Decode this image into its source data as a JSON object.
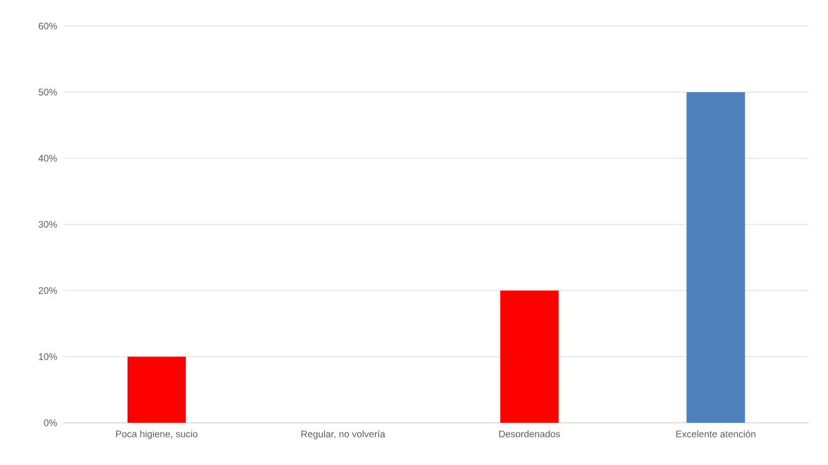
{
  "chart_data": {
    "type": "bar",
    "categories": [
      "Poca higiene, sucio",
      "Regular, no volvería",
      "Desordenados",
      "Excelente atención"
    ],
    "values": [
      10,
      0,
      20,
      50
    ],
    "colors": [
      "#ff0000",
      "#ff0000",
      "#ff0000",
      "#4f81bd"
    ],
    "ylim": [
      0,
      60
    ],
    "yticks": [
      {
        "value": 0,
        "label": "0%"
      },
      {
        "value": 10,
        "label": "10%"
      },
      {
        "value": 20,
        "label": "20%"
      },
      {
        "value": 30,
        "label": "30%"
      },
      {
        "value": 40,
        "label": "40%"
      },
      {
        "value": 50,
        "label": "50%"
      },
      {
        "value": 60,
        "label": "60%"
      }
    ],
    "grid": "y"
  }
}
